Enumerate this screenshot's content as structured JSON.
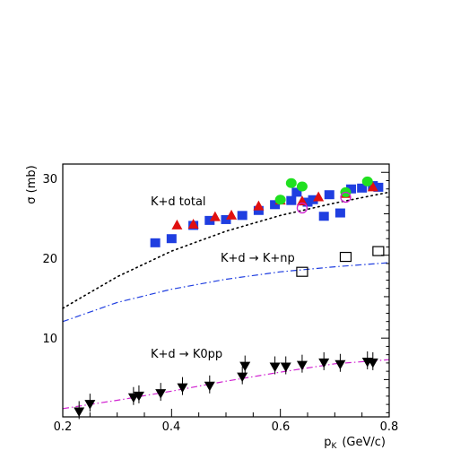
{
  "chart_data": {
    "type": "scatter",
    "xlabel": "p",
    "xlabel_sub": "K",
    "xlabel_unit": "(GeV/c)",
    "ylabel": "σ (mb)",
    "xlim": [
      0.2,
      0.8
    ],
    "ylim": [
      0.5,
      31
    ],
    "x_ticks": [
      "0.2",
      "0.4",
      "0.6",
      "0.8"
    ],
    "y_ticks": [
      "10",
      "20",
      "30"
    ],
    "grid": false,
    "annotations": {
      "total": "K+d total",
      "np": "K+d → K+np",
      "pp": "K+d → K0pp"
    },
    "series": [
      {
        "marker": "square-filled",
        "color": "#1f3ee0",
        "points": [
          [
            0.37,
            21.5
          ],
          [
            0.4,
            22.0
          ],
          [
            0.44,
            23.6
          ],
          [
            0.47,
            24.2
          ],
          [
            0.5,
            24.3
          ],
          [
            0.53,
            24.8
          ],
          [
            0.56,
            25.4
          ],
          [
            0.59,
            26.1
          ],
          [
            0.62,
            26.6
          ],
          [
            0.63,
            27.6
          ],
          [
            0.65,
            26.4
          ],
          [
            0.66,
            26.7
          ],
          [
            0.68,
            24.7
          ],
          [
            0.69,
            27.3
          ],
          [
            0.71,
            25.1
          ],
          [
            0.73,
            28.0
          ],
          [
            0.75,
            28.1
          ],
          [
            0.77,
            28.4
          ],
          [
            0.78,
            28.2
          ]
        ]
      },
      {
        "marker": "triangle-up-filled",
        "color": "#e01010",
        "points": [
          [
            0.41,
            23.6
          ],
          [
            0.44,
            23.7
          ],
          [
            0.48,
            24.6
          ],
          [
            0.51,
            24.8
          ],
          [
            0.56,
            25.9
          ],
          [
            0.6,
            26.6
          ],
          [
            0.64,
            26.5
          ],
          [
            0.67,
            27.0
          ],
          [
            0.72,
            27.4
          ],
          [
            0.77,
            28.2
          ]
        ]
      },
      {
        "marker": "circle-filled",
        "color": "#20e020",
        "points": [
          [
            0.6,
            26.7
          ],
          [
            0.62,
            28.7
          ],
          [
            0.64,
            28.3
          ],
          [
            0.72,
            27.6
          ],
          [
            0.76,
            28.9
          ]
        ]
      },
      {
        "marker": "circle-open",
        "color": "#d020d0",
        "points": [
          [
            0.64,
            25.7
          ],
          [
            0.72,
            27.0
          ]
        ]
      },
      {
        "marker": "square-open",
        "color": "#000000",
        "points": [
          [
            0.64,
            18.0
          ],
          [
            0.72,
            19.8
          ],
          [
            0.78,
            20.5
          ]
        ]
      },
      {
        "marker": "triangle-down-filled",
        "color": "#000000",
        "points": [
          [
            0.23,
            1.1
          ],
          [
            0.25,
            2.0
          ],
          [
            0.33,
            2.8
          ],
          [
            0.34,
            3.0
          ],
          [
            0.38,
            3.3
          ],
          [
            0.42,
            4.0
          ],
          [
            0.47,
            4.2
          ],
          [
            0.53,
            5.3
          ],
          [
            0.535,
            6.6
          ],
          [
            0.59,
            6.5
          ],
          [
            0.61,
            6.5
          ],
          [
            0.64,
            6.7
          ],
          [
            0.68,
            7.0
          ],
          [
            0.71,
            6.8
          ],
          [
            0.76,
            7.1
          ],
          [
            0.77,
            7.0
          ]
        ]
      }
    ],
    "curves": [
      {
        "style": "dotted",
        "color": "#000000",
        "points": [
          [
            0.2,
            13.6
          ],
          [
            0.3,
            17.4
          ],
          [
            0.4,
            20.5
          ],
          [
            0.5,
            22.9
          ],
          [
            0.6,
            24.8
          ],
          [
            0.7,
            26.3
          ],
          [
            0.8,
            27.6
          ]
        ]
      },
      {
        "style": "dashed",
        "color": "#1f3ee0",
        "points": [
          [
            0.2,
            12.0
          ],
          [
            0.3,
            14.3
          ],
          [
            0.4,
            15.9
          ],
          [
            0.5,
            17.1
          ],
          [
            0.6,
            18.0
          ],
          [
            0.7,
            18.6
          ],
          [
            0.8,
            19.1
          ]
        ]
      },
      {
        "style": "dashed",
        "color": "#d020d0",
        "points": [
          [
            0.2,
            1.5
          ],
          [
            0.3,
            2.5
          ],
          [
            0.4,
            3.6
          ],
          [
            0.5,
            4.8
          ],
          [
            0.6,
            5.9
          ],
          [
            0.7,
            6.9
          ],
          [
            0.8,
            7.4
          ]
        ]
      }
    ]
  }
}
